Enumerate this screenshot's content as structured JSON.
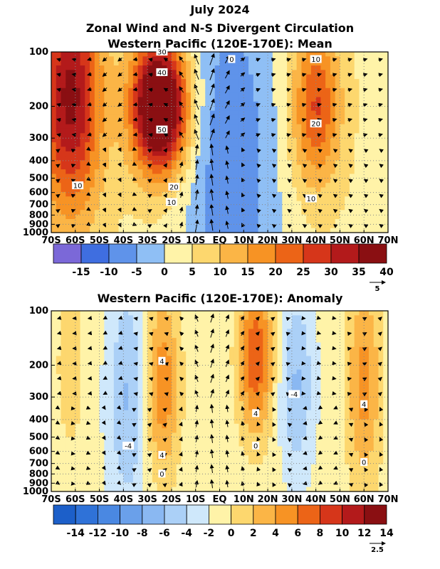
{
  "figure": {
    "title_line1": "July 2024",
    "title_line2": "Zonal Wind and N-S Divergent Circulation"
  },
  "chart_data": [
    {
      "type": "heatmap",
      "title": "Western Pacific (120E-170E): Mean",
      "x_ticks": [
        "70S",
        "60S",
        "50S",
        "40S",
        "30S",
        "20S",
        "10S",
        "EQ",
        "10N",
        "20N",
        "30N",
        "40N",
        "50N",
        "60N",
        "70N"
      ],
      "x_range": [
        -70,
        70
      ],
      "y_ticks": [
        "100",
        "200",
        "300",
        "400",
        "500",
        "600",
        "700",
        "800",
        "900",
        "1000"
      ],
      "y_range_hpa": [
        100,
        1000
      ],
      "y_scale": "log",
      "colorbar_ticks": [
        "-15",
        "-10",
        "-5",
        "0",
        "5",
        "10",
        "15",
        "20",
        "25",
        "30",
        "35",
        "40"
      ],
      "colorbar_colors": [
        "#7b68d8",
        "#3f6ee0",
        "#5f93ea",
        "#8fbff5",
        "#fff3a8",
        "#fdd76e",
        "#fbb546",
        "#f79324",
        "#ec6417",
        "#d6361a",
        "#b31a1b",
        "#8a0f12"
      ],
      "contour_labels": [
        "30",
        "40",
        "50",
        "20",
        "10",
        "10",
        "0",
        "10",
        "20",
        "10"
      ],
      "vector_reference": "5",
      "grid": true,
      "fields": [
        {
          "kind": "jet",
          "center_lat": -25,
          "center_hpa": 200,
          "peak": 52,
          "width_lat": 8,
          "width_logp": 0.25
        },
        {
          "kind": "jet",
          "center_lat": -62,
          "center_hpa": 180,
          "peak": 33,
          "width_lat": 9,
          "width_logp": 0.45
        },
        {
          "kind": "jet",
          "center_lat": 40,
          "center_hpa": 200,
          "peak": 22,
          "width_lat": 7,
          "width_logp": 0.3
        },
        {
          "kind": "easterly",
          "center_lat": 5,
          "center_hpa": 500,
          "peak": -13,
          "width_lat": 14,
          "width_logp": 0.9
        }
      ]
    },
    {
      "type": "heatmap",
      "title": "Western Pacific (120E-170E): Anomaly",
      "x_ticks": [
        "70S",
        "60S",
        "50S",
        "40S",
        "30S",
        "20S",
        "10S",
        "EQ",
        "10N",
        "20N",
        "30N",
        "40N",
        "50N",
        "60N",
        "70N"
      ],
      "x_range": [
        -70,
        70
      ],
      "y_ticks": [
        "100",
        "200",
        "300",
        "400",
        "500",
        "600",
        "700",
        "800",
        "900",
        "1000"
      ],
      "y_range_hpa": [
        100,
        1000
      ],
      "y_scale": "log",
      "colorbar_ticks": [
        "-14",
        "-12",
        "-10",
        "-8",
        "-6",
        "-4",
        "-2",
        "0",
        "2",
        "4",
        "6",
        "8",
        "10",
        "12",
        "14"
      ],
      "colorbar_colors": [
        "#1c5fc9",
        "#2f72d8",
        "#4a88e2",
        "#6aa0ea",
        "#8ab8f2",
        "#abd0f7",
        "#cfe8fb",
        "#fff3a8",
        "#fdd76e",
        "#fbb546",
        "#f79324",
        "#ec6417",
        "#d6361a",
        "#b31a1b",
        "#8a0f12"
      ],
      "contour_labels": [
        "4",
        "4",
        "-4",
        "0",
        "4",
        "-4",
        "4",
        "0",
        "0"
      ],
      "vector_reference": "2.5",
      "grid": true,
      "fields": [
        {
          "kind": "pos",
          "center_lat": -24,
          "center_hpa": 260,
          "peak": 7,
          "width_lat": 5,
          "width_logp": 0.35
        },
        {
          "kind": "neg",
          "center_lat": -38,
          "center_hpa": 300,
          "peak": -5,
          "width_lat": 6,
          "width_logp": 0.45
        },
        {
          "kind": "pos",
          "center_lat": 15,
          "center_hpa": 180,
          "peak": 9,
          "width_lat": 5,
          "width_logp": 0.3
        },
        {
          "kind": "neg",
          "center_lat": 32,
          "center_hpa": 250,
          "peak": -5,
          "width_lat": 5,
          "width_logp": 0.35
        },
        {
          "kind": "pos",
          "center_lat": 60,
          "center_hpa": 250,
          "peak": 6,
          "width_lat": 5,
          "width_logp": 0.4
        },
        {
          "kind": "pos",
          "center_lat": -62,
          "center_hpa": 200,
          "peak": 2,
          "width_lat": 5,
          "width_logp": 0.4
        }
      ]
    }
  ]
}
